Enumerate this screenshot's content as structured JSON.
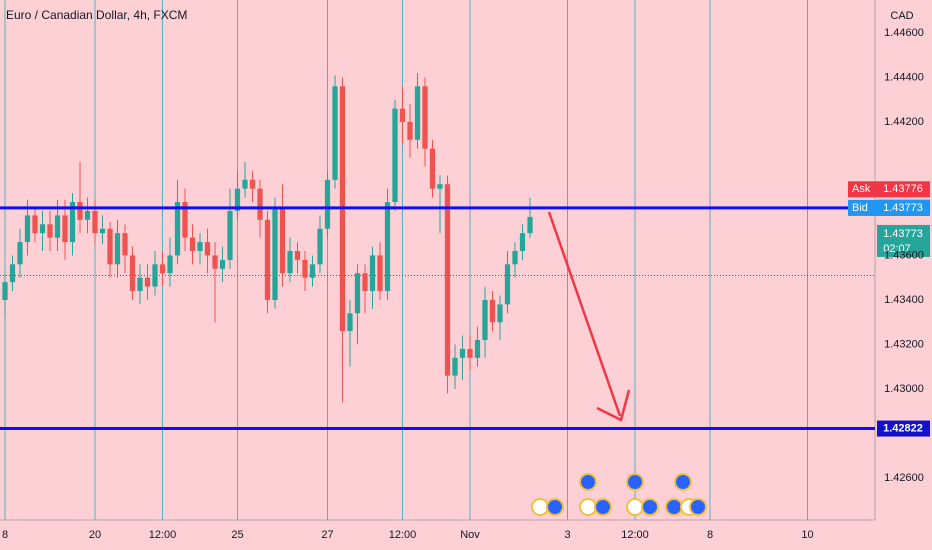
{
  "chart_data": {
    "type": "candlestick",
    "title": "Euro / Canadian Dollar, 4h, FXCM",
    "currency": "CAD",
    "up_color": "#26a69a",
    "down_color": "#ef5350",
    "grid_color": "#4fb3c4",
    "level_color": "#1010ee",
    "open": [
      1.434,
      1.4348,
      1.4356,
      1.4366,
      1.4378,
      1.437,
      1.4374,
      1.4368,
      1.4378,
      1.4366,
      1.4384,
      1.4376,
      1.438,
      1.437,
      1.4372,
      1.4356,
      1.437,
      1.436,
      1.4344,
      1.435,
      1.4346,
      1.4356,
      1.4352,
      1.436,
      1.4384,
      1.4368,
      1.4362,
      1.4366,
      1.436,
      1.4354,
      1.4358,
      1.438,
      1.439,
      1.4394,
      1.439,
      1.4376,
      1.434,
      1.4382,
      1.4352,
      1.4362,
      1.4358,
      1.435,
      1.4356,
      1.4372,
      1.4394,
      1.4436,
      1.4326,
      1.4334,
      1.4352,
      1.4344,
      1.436,
      1.4344,
      1.4384,
      1.4426,
      1.442,
      1.4412,
      1.4436,
      1.4408,
      1.439,
      1.4392,
      1.4306,
      1.4314,
      1.4318,
      1.4314,
      1.4322,
      1.434,
      1.433,
      1.4338,
      1.4356,
      1.4362,
      1.437
    ],
    "high": [
      1.4352,
      1.436,
      1.4372,
      1.4385,
      1.4382,
      1.438,
      1.438,
      1.4385,
      1.4385,
      1.4388,
      1.4402,
      1.4386,
      1.4385,
      1.4378,
      1.4375,
      1.4376,
      1.4374,
      1.4364,
      1.4356,
      1.4356,
      1.4362,
      1.4362,
      1.4368,
      1.4394,
      1.439,
      1.4374,
      1.437,
      1.4372,
      1.4366,
      1.4364,
      1.439,
      1.4398,
      1.4402,
      1.4398,
      1.4394,
      1.438,
      1.4386,
      1.4392,
      1.4368,
      1.4366,
      1.4362,
      1.436,
      1.4378,
      1.4398,
      1.4441,
      1.444,
      1.434,
      1.4356,
      1.4356,
      1.4364,
      1.4366,
      1.439,
      1.443,
      1.4436,
      1.4428,
      1.4442,
      1.444,
      1.4412,
      1.4396,
      1.4396,
      1.432,
      1.4324,
      1.4324,
      1.4328,
      1.4346,
      1.4344,
      1.4342,
      1.4362,
      1.4366,
      1.4374,
      1.4386
    ],
    "low": [
      1.4332,
      1.4344,
      1.435,
      1.436,
      1.4366,
      1.4362,
      1.4362,
      1.4362,
      1.4358,
      1.436,
      1.437,
      1.437,
      1.4365,
      1.4365,
      1.435,
      1.435,
      1.4352,
      1.434,
      1.4338,
      1.434,
      1.4342,
      1.4346,
      1.4346,
      1.4356,
      1.4362,
      1.4356,
      1.4356,
      1.4352,
      1.433,
      1.4348,
      1.4354,
      1.4376,
      1.4386,
      1.4384,
      1.4368,
      1.4334,
      1.4336,
      1.4346,
      1.4348,
      1.4352,
      1.4344,
      1.4346,
      1.4352,
      1.4368,
      1.439,
      1.4294,
      1.431,
      1.432,
      1.4334,
      1.4336,
      1.434,
      1.434,
      1.438,
      1.441,
      1.4404,
      1.4408,
      1.44,
      1.4386,
      1.437,
      1.4298,
      1.43,
      1.4304,
      1.4308,
      1.431,
      1.4314,
      1.4326,
      1.4322,
      1.4334,
      1.435,
      1.4358,
      1.4368
    ],
    "close": [
      1.4348,
      1.4356,
      1.4366,
      1.4378,
      1.437,
      1.4374,
      1.4368,
      1.4378,
      1.4366,
      1.4384,
      1.4376,
      1.438,
      1.437,
      1.4372,
      1.4356,
      1.437,
      1.436,
      1.4344,
      1.435,
      1.4346,
      1.4356,
      1.4352,
      1.436,
      1.4384,
      1.4368,
      1.4362,
      1.4366,
      1.436,
      1.4354,
      1.4358,
      1.438,
      1.439,
      1.4394,
      1.439,
      1.4376,
      1.434,
      1.4382,
      1.4352,
      1.4362,
      1.4358,
      1.435,
      1.4356,
      1.4372,
      1.4394,
      1.4436,
      1.4326,
      1.4334,
      1.4352,
      1.4344,
      1.436,
      1.4344,
      1.4384,
      1.4426,
      1.442,
      1.4412,
      1.4436,
      1.4408,
      1.439,
      1.4392,
      1.4306,
      1.4314,
      1.4318,
      1.4314,
      1.4322,
      1.434,
      1.433,
      1.4338,
      1.4356,
      1.4362,
      1.437,
      1.43773
    ],
    "xlim": [
      0,
      116
    ],
    "xticks": [
      {
        "value": 0,
        "label": "8"
      },
      {
        "value": 12,
        "label": "20"
      },
      {
        "value": 21,
        "label": "12:00"
      },
      {
        "value": 31,
        "label": "25"
      },
      {
        "value": 43,
        "label": "27"
      },
      {
        "value": 53,
        "label": "12:00"
      },
      {
        "value": 62,
        "label": "Nov"
      },
      {
        "value": 75,
        "label": "3"
      },
      {
        "value": 84,
        "label": "12:00"
      },
      {
        "value": 94,
        "label": "8"
      },
      {
        "value": 107,
        "label": "10"
      }
    ],
    "ylim": [
      1.42411,
      1.44748
    ],
    "yticks": [
      {
        "value": 1.446,
        "label": "1.44600"
      },
      {
        "value": 1.444,
        "label": "1.44400"
      },
      {
        "value": 1.442,
        "label": "1.44200"
      },
      {
        "value": 1.436,
        "label": "1.43600"
      },
      {
        "value": 1.434,
        "label": "1.43400"
      },
      {
        "value": 1.432,
        "label": "1.43200"
      },
      {
        "value": 1.43,
        "label": "1.43000"
      },
      {
        "value": 1.426,
        "label": "1.42600"
      }
    ],
    "levels": [
      1.43814,
      1.42822
    ],
    "prev_close": 1.4351,
    "ask": {
      "label": "Ask",
      "value": 1.43776
    },
    "bid": {
      "label": "Bid",
      "value": 1.43773
    },
    "last": {
      "value": 1.43773,
      "countdown": "02:07"
    }
  }
}
